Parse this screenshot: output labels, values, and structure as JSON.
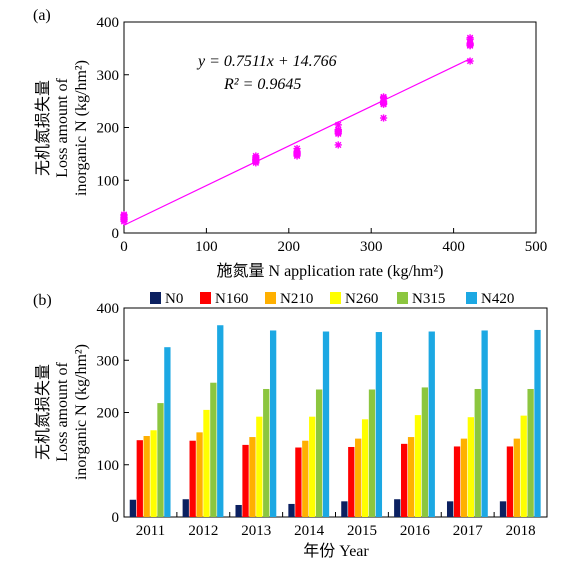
{
  "chart_data": [
    {
      "panel": "(a)",
      "type": "scatter",
      "xlabel": "施氮量 N application rate (kg/hm²)",
      "ylabel_cn": "无机氮损失量",
      "ylabel_en_1": "Loss amount of",
      "ylabel_en_2": "inorganic N (kg/hm²)",
      "xlim": [
        0,
        500
      ],
      "ylim": [
        0,
        400
      ],
      "x_ticks": [
        "0",
        "100",
        "200",
        "300",
        "400",
        "500"
      ],
      "y_ticks": [
        "0",
        "100",
        "200",
        "300",
        "400"
      ],
      "equation": "y = 0.7511x + 14.766",
      "r2": "R² = 0.9645",
      "fit": {
        "slope": 0.7511,
        "intercept": 14.766,
        "x_range": [
          0,
          420
        ]
      },
      "marker_color": "#FF00FF",
      "points": [
        {
          "x": 0,
          "y": 22
        },
        {
          "x": 0,
          "y": 25
        },
        {
          "x": 0,
          "y": 27
        },
        {
          "x": 0,
          "y": 29
        },
        {
          "x": 0,
          "y": 30
        },
        {
          "x": 0,
          "y": 33
        },
        {
          "x": 0,
          "y": 35
        },
        {
          "x": 0,
          "y": 25
        },
        {
          "x": 160,
          "y": 133
        },
        {
          "x": 160,
          "y": 138
        },
        {
          "x": 160,
          "y": 140
        },
        {
          "x": 160,
          "y": 143
        },
        {
          "x": 160,
          "y": 146
        },
        {
          "x": 160,
          "y": 135
        },
        {
          "x": 160,
          "y": 140
        },
        {
          "x": 160,
          "y": 137
        },
        {
          "x": 210,
          "y": 146
        },
        {
          "x": 210,
          "y": 150
        },
        {
          "x": 210,
          "y": 152
        },
        {
          "x": 210,
          "y": 155
        },
        {
          "x": 210,
          "y": 160
        },
        {
          "x": 210,
          "y": 148
        },
        {
          "x": 210,
          "y": 153
        },
        {
          "x": 210,
          "y": 150
        },
        {
          "x": 260,
          "y": 167
        },
        {
          "x": 260,
          "y": 188
        },
        {
          "x": 260,
          "y": 193
        },
        {
          "x": 260,
          "y": 196
        },
        {
          "x": 260,
          "y": 205
        },
        {
          "x": 260,
          "y": 193
        },
        {
          "x": 260,
          "y": 196
        },
        {
          "x": 260,
          "y": 190
        },
        {
          "x": 315,
          "y": 218
        },
        {
          "x": 315,
          "y": 245
        },
        {
          "x": 315,
          "y": 248
        },
        {
          "x": 315,
          "y": 250
        },
        {
          "x": 315,
          "y": 256
        },
        {
          "x": 315,
          "y": 258
        },
        {
          "x": 315,
          "y": 244
        },
        {
          "x": 315,
          "y": 246
        },
        {
          "x": 420,
          "y": 326
        },
        {
          "x": 420,
          "y": 355
        },
        {
          "x": 420,
          "y": 356
        },
        {
          "x": 420,
          "y": 358
        },
        {
          "x": 420,
          "y": 360
        },
        {
          "x": 420,
          "y": 367
        },
        {
          "x": 420,
          "y": 370
        },
        {
          "x": 420,
          "y": 358
        }
      ]
    },
    {
      "panel": "(b)",
      "type": "bar",
      "xlabel": "年份 Year",
      "ylabel_cn": "无机氮损失量",
      "ylabel_en_1": "Loss amount of",
      "ylabel_en_2": "inorganic N (kg/hm²)",
      "ylim": [
        0,
        400
      ],
      "y_ticks": [
        "0",
        "100",
        "200",
        "300",
        "400"
      ],
      "categories": [
        "2011",
        "2012",
        "2013",
        "2014",
        "2015",
        "2016",
        "2017",
        "2018"
      ],
      "legend_position": "top",
      "series": [
        {
          "name": "N0",
          "color": "#0B2060",
          "values": [
            33,
            34,
            23,
            25,
            30,
            34,
            30,
            30
          ]
        },
        {
          "name": "N160",
          "color": "#FF0000",
          "values": [
            147,
            146,
            138,
            133,
            134,
            140,
            135,
            135
          ]
        },
        {
          "name": "N210",
          "color": "#FFB000",
          "values": [
            155,
            162,
            153,
            146,
            150,
            153,
            150,
            150
          ]
        },
        {
          "name": "N260",
          "color": "#FFFF00",
          "values": [
            166,
            205,
            192,
            192,
            187,
            195,
            191,
            194
          ]
        },
        {
          "name": "N315",
          "color": "#8CC63F",
          "values": [
            218,
            257,
            245,
            244,
            244,
            248,
            245,
            245
          ]
        },
        {
          "name": "N420",
          "color": "#1CA8E3",
          "values": [
            325,
            367,
            357,
            355,
            354,
            355,
            357,
            358
          ]
        }
      ]
    }
  ]
}
